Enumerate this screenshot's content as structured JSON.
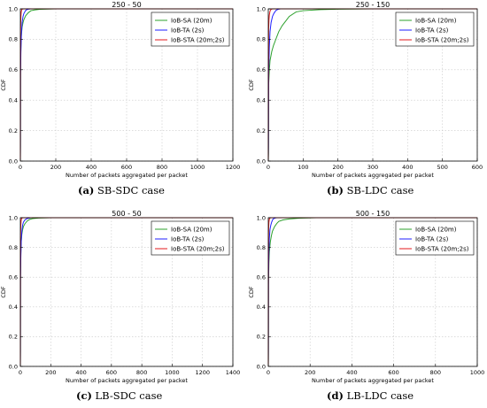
{
  "figure": {
    "legend_labels": [
      "IoB-SA (20m)",
      "IoB-TA (2s)",
      "IoB-STA (20m;2s)"
    ],
    "series_colors": [
      "#2ca02c",
      "#1f1fff",
      "#e31a1c"
    ]
  },
  "chart_data": [
    {
      "id": "a",
      "type": "line",
      "title": "250 - 50",
      "xlabel": "Number of packets aggregated per packet",
      "ylabel": "CDF",
      "xlim": [
        0,
        1200
      ],
      "ylim": [
        0,
        1.0
      ],
      "xticks": [
        0,
        200,
        400,
        600,
        800,
        1000,
        1200
      ],
      "yticks": [
        0.0,
        0.2,
        0.4,
        0.6,
        0.8,
        1.0
      ],
      "grid": true,
      "legend": "top-right",
      "caption_letter": "(a)",
      "caption_text": "SB-SDC case",
      "series": [
        {
          "name": "IoB-SA (20m)",
          "x": [
            0,
            0.5,
            1,
            3,
            5,
            10,
            15,
            20,
            30,
            45,
            60,
            80,
            110,
            200,
            1200
          ],
          "y": [
            0,
            0.1,
            0.58,
            0.75,
            0.82,
            0.88,
            0.91,
            0.93,
            0.955,
            0.975,
            0.988,
            0.993,
            0.997,
            1.0,
            1.0
          ]
        },
        {
          "name": "IoB-TA (2s)",
          "x": [
            0,
            0.5,
            1,
            3,
            6,
            10,
            15,
            20,
            30,
            40,
            60,
            1200
          ],
          "y": [
            0,
            0.1,
            0.56,
            0.72,
            0.84,
            0.91,
            0.95,
            0.97,
            0.99,
            0.997,
            1.0,
            1.0
          ]
        },
        {
          "name": "IoB-STA (20m;2s)",
          "x": [
            0,
            0.5,
            1,
            2,
            3,
            5,
            8,
            12,
            20,
            1200
          ],
          "y": [
            0,
            0.5,
            0.84,
            0.91,
            0.95,
            0.98,
            0.995,
            0.999,
            1.0,
            1.0
          ]
        }
      ]
    },
    {
      "id": "b",
      "type": "line",
      "title": "250 - 150",
      "xlabel": "Number of packets aggregated per packet",
      "ylabel": "CDF",
      "xlim": [
        0,
        600
      ],
      "ylim": [
        0,
        1.0
      ],
      "xticks": [
        0,
        100,
        200,
        300,
        400,
        500,
        600
      ],
      "yticks": [
        0.0,
        0.2,
        0.4,
        0.6,
        0.8,
        1.0
      ],
      "grid": true,
      "legend": "top-right",
      "caption_letter": "(b)",
      "caption_text": "SB-LDC case",
      "series": [
        {
          "name": "IoB-SA (20m)",
          "x": [
            0,
            0.5,
            1,
            3,
            5,
            10,
            15,
            20,
            25,
            30,
            40,
            50,
            60,
            80,
            100,
            150,
            200,
            300,
            600
          ],
          "y": [
            0,
            0.05,
            0.5,
            0.6,
            0.66,
            0.72,
            0.76,
            0.79,
            0.82,
            0.85,
            0.89,
            0.92,
            0.95,
            0.98,
            0.988,
            0.995,
            0.998,
            1.0,
            1.0
          ]
        },
        {
          "name": "IoB-TA (2s)",
          "x": [
            0,
            0.5,
            1,
            3,
            5,
            8,
            12,
            16,
            22,
            28,
            35,
            600
          ],
          "y": [
            0,
            0.1,
            0.57,
            0.75,
            0.85,
            0.91,
            0.95,
            0.97,
            0.99,
            0.997,
            1.0,
            1.0
          ]
        },
        {
          "name": "IoB-STA (20m;2s)",
          "x": [
            0,
            0.5,
            1,
            2,
            3,
            5,
            8,
            12,
            600
          ],
          "y": [
            0,
            0.6,
            0.87,
            0.93,
            0.96,
            0.985,
            0.997,
            1.0,
            1.0
          ]
        }
      ]
    },
    {
      "id": "c",
      "type": "line",
      "title": "500 - 50",
      "xlabel": "Number of packets aggregated per packet",
      "ylabel": "CDF",
      "xlim": [
        0,
        1400
      ],
      "ylim": [
        0,
        1.0
      ],
      "xticks": [
        0,
        200,
        400,
        600,
        800,
        1000,
        1200,
        1400
      ],
      "yticks": [
        0.0,
        0.2,
        0.4,
        0.6,
        0.8,
        1.0
      ],
      "grid": true,
      "legend": "top-right",
      "caption_letter": "(c)",
      "caption_text": "LB-SDC case",
      "series": [
        {
          "name": "IoB-SA (20m)",
          "x": [
            0,
            0.5,
            1,
            3,
            5,
            10,
            15,
            20,
            30,
            45,
            60,
            80,
            120,
            200,
            1400
          ],
          "y": [
            0,
            0.1,
            0.6,
            0.76,
            0.83,
            0.89,
            0.92,
            0.94,
            0.96,
            0.978,
            0.988,
            0.994,
            0.998,
            1.0,
            1.0
          ]
        },
        {
          "name": "IoB-TA (2s)",
          "x": [
            0,
            0.5,
            1,
            3,
            6,
            10,
            15,
            20,
            30,
            45,
            70,
            1400
          ],
          "y": [
            0,
            0.1,
            0.58,
            0.73,
            0.85,
            0.91,
            0.95,
            0.97,
            0.985,
            0.995,
            1.0,
            1.0
          ]
        },
        {
          "name": "IoB-STA (20m;2s)",
          "x": [
            0,
            0.5,
            1,
            2,
            3,
            5,
            8,
            12,
            20,
            1400
          ],
          "y": [
            0,
            0.5,
            0.85,
            0.92,
            0.95,
            0.98,
            0.995,
            0.999,
            1.0,
            1.0
          ]
        }
      ]
    },
    {
      "id": "d",
      "type": "line",
      "title": "500 - 150",
      "xlabel": "Number of packets aggregated per packet",
      "ylabel": "CDF",
      "xlim": [
        0,
        1000
      ],
      "ylim": [
        0,
        1.0
      ],
      "xticks": [
        0,
        200,
        400,
        600,
        800,
        1000
      ],
      "yticks": [
        0.0,
        0.2,
        0.4,
        0.6,
        0.8,
        1.0
      ],
      "grid": true,
      "legend": "top-right",
      "caption_letter": "(d)",
      "caption_text": "LB-LDC case",
      "series": [
        {
          "name": "IoB-SA (20m)",
          "x": [
            0,
            0.5,
            1,
            3,
            5,
            10,
            15,
            20,
            30,
            40,
            50,
            70,
            100,
            150,
            230,
            1000
          ],
          "y": [
            0,
            0.05,
            0.55,
            0.7,
            0.77,
            0.84,
            0.88,
            0.91,
            0.94,
            0.96,
            0.975,
            0.985,
            0.992,
            0.997,
            1.0,
            1.0
          ]
        },
        {
          "name": "IoB-TA (2s)",
          "x": [
            0,
            0.5,
            1,
            3,
            5,
            8,
            12,
            16,
            22,
            30,
            40,
            1000
          ],
          "y": [
            0,
            0.1,
            0.6,
            0.77,
            0.86,
            0.92,
            0.95,
            0.97,
            0.99,
            0.997,
            1.0,
            1.0
          ]
        },
        {
          "name": "IoB-STA (20m;2s)",
          "x": [
            0,
            0.5,
            1,
            2,
            3,
            5,
            8,
            12,
            1000
          ],
          "y": [
            0,
            0.6,
            0.88,
            0.94,
            0.97,
            0.99,
            0.998,
            1.0,
            1.0
          ]
        }
      ]
    }
  ]
}
